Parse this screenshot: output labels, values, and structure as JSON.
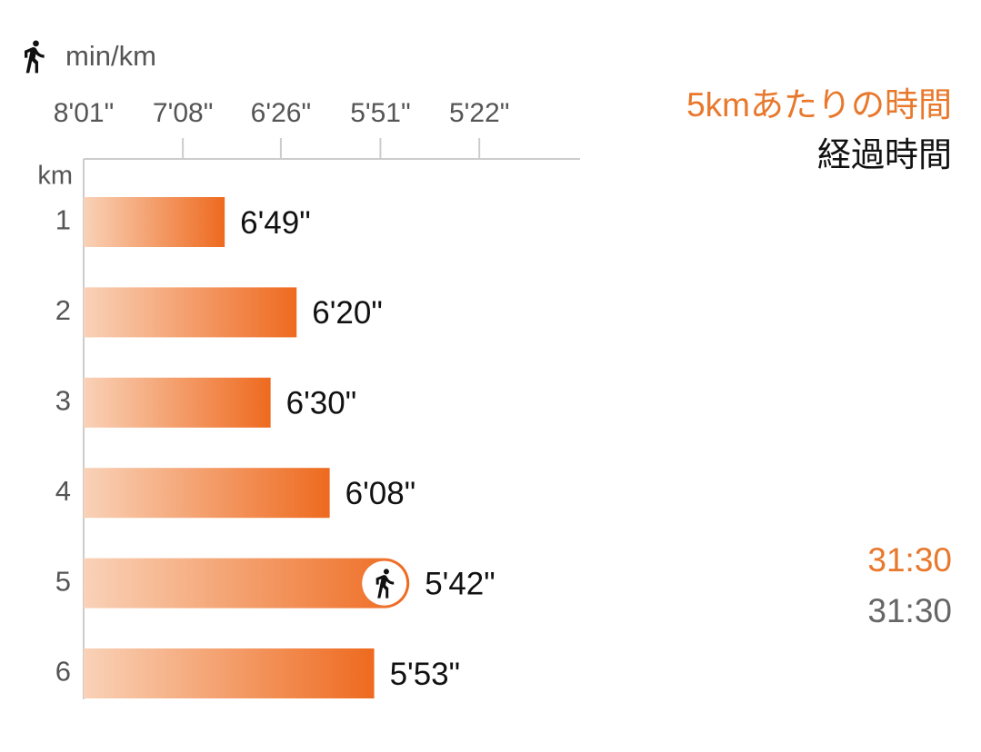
{
  "chart_data": {
    "type": "bar",
    "orientation": "horizontal",
    "unit_label": "min/km",
    "category_axis_label": "km",
    "categories": [
      "1",
      "2",
      "3",
      "4",
      "5",
      "6"
    ],
    "values": [
      409,
      380,
      390,
      368,
      342,
      353
    ],
    "value_labels": [
      "6'49\"",
      "6'20\"",
      "6'30\"",
      "6'08\"",
      "5'42\"",
      "5'53\""
    ],
    "highlight_category": "5",
    "color": "#ee6a1f",
    "color_start": "#f9d2b8",
    "x_scale": "reciprocal",
    "xlim": [
      481,
      297
    ],
    "xticks": [
      {
        "value": 481,
        "label": "8'01\""
      },
      {
        "value": 428,
        "label": "7'08\""
      },
      {
        "value": 386,
        "label": "6'26\""
      },
      {
        "value": 351,
        "label": "5'51\""
      },
      {
        "value": 322,
        "label": "5'22\""
      }
    ],
    "split_label": "5kmあたりの時間",
    "elapsed_label": "経過時間",
    "split_time": "31:30",
    "elapsed_time": "31:30"
  }
}
